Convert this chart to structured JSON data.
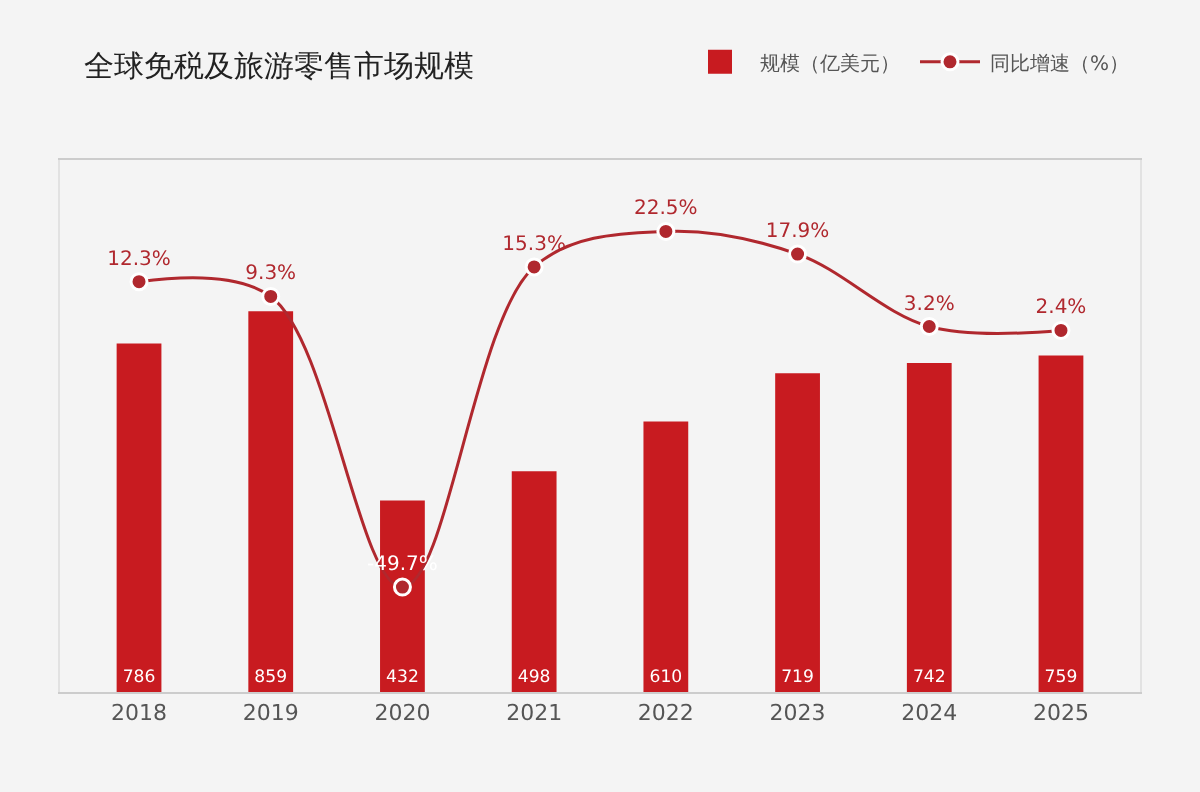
{
  "chart_data": {
    "type": "bar",
    "title": "全球免税及旅游零售市场规模",
    "categories": [
      "2018",
      "2019",
      "2020",
      "2021",
      "2022",
      "2023",
      "2024",
      "2025"
    ],
    "series": [
      {
        "name": "规模（亿美元）",
        "color": "#c81b20",
        "values": [
          786,
          859,
          432,
          498,
          610,
          719,
          742,
          759
        ],
        "value_labels": [
          "786",
          "859",
          "432",
          "498",
          "610",
          "719",
          "742",
          "759"
        ]
      },
      {
        "name": "同比增速（%）",
        "type": "line",
        "axis": "y2",
        "color": "#b0282e",
        "values": [
          12.3,
          9.3,
          -49.7,
          15.3,
          22.5,
          17.9,
          3.2,
          2.4
        ],
        "value_labels": [
          "12.3%",
          "9.3%",
          "-49.7%",
          "15.3%",
          "22.5%",
          "17.9%",
          "3.2%",
          "2.4%"
        ]
      }
    ],
    "ylim": [
      0,
      1200
    ],
    "y2lim": [
      -71,
      37
    ],
    "marker": "circle",
    "legend": "top right",
    "tick_labels": "x"
  }
}
